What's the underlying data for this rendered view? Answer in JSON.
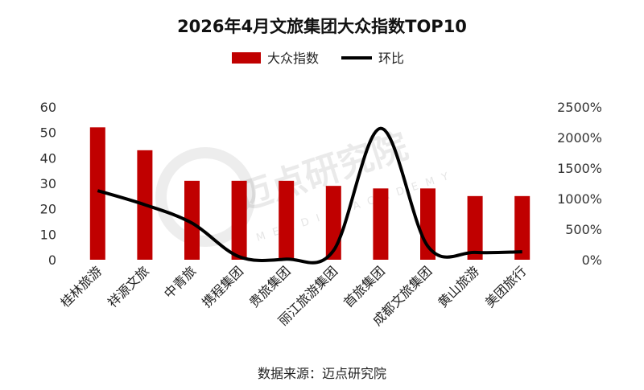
{
  "chart_data": {
    "type": "bar",
    "title": "2026年4月文旅集团大众指数TOP10",
    "categories": [
      "桂林旅游",
      "祥源文旅",
      "中青旅",
      "携程集团",
      "贵旅集团",
      "丽江旅游集团",
      "首旅集团",
      "成都文旅集团",
      "黄山旅游",
      "美团旅行"
    ],
    "series": [
      {
        "name": "大众指数",
        "type": "bar",
        "axis": "left",
        "color": "#c00000",
        "values": [
          52,
          43,
          31,
          31,
          31,
          29,
          28,
          28,
          25,
          25
        ]
      },
      {
        "name": "环比",
        "type": "line",
        "axis": "right",
        "color": "#000000",
        "values": [
          1130,
          900,
          600,
          50,
          10,
          150,
          2150,
          220,
          120,
          130
        ]
      }
    ],
    "y_left": {
      "range": [
        0,
        60
      ],
      "ticks": [
        "0",
        "10",
        "20",
        "30",
        "40",
        "50",
        "60"
      ]
    },
    "y_right": {
      "range": [
        0,
        2500
      ],
      "ticks": [
        "0%",
        "500%",
        "1000%",
        "1500%",
        "2000%",
        "2500%"
      ]
    },
    "legend_position": "top-center",
    "grid": false
  },
  "source_text": "数据来源：迈点研究院",
  "watermark": {
    "text": "迈点研究院",
    "subtext": "MEADIN ACADEMY"
  }
}
